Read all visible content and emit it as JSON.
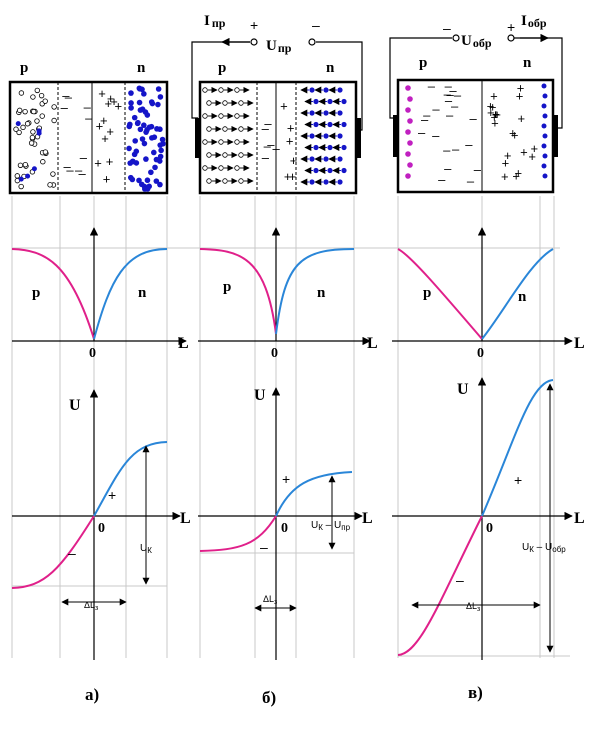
{
  "colors": {
    "p_curve": "#e0208a",
    "n_curve": "#2a86d8",
    "electron": "#1515c8",
    "hole_fill": "#ffffff",
    "ion_p_side": "#c020c0",
    "grid": "#c8c8c8"
  },
  "panels": [
    {
      "caption": "а)",
      "region_p": "p",
      "region_n": "n",
      "dens_p": "p",
      "dens_n": "n",
      "axis_zero": "0",
      "axis_L": "L",
      "axis_U": "U",
      "plus_sign": "+",
      "minus_sign": "–",
      "width_label": "ΔL",
      "width_sub": "з",
      "voltage_label": "U",
      "voltage_sub": "К",
      "voltage_rest": ""
    },
    {
      "caption": "б)",
      "region_p": "p",
      "region_n": "n",
      "dens_p": "p",
      "dens_n": "n",
      "axis_zero": "0",
      "axis_L": "L",
      "axis_U": "U",
      "plus_sign": "+",
      "minus_sign": "–",
      "width_label": "ΔL",
      "width_sub": "з",
      "voltage_label": "U",
      "voltage_sub": "К",
      "voltage_rest": " – U",
      "voltage_rest_sub": "пр",
      "current_label": "I",
      "current_sub": "пр",
      "source_label": "U",
      "source_sub": "пр",
      "source_plus": "+",
      "source_minus": "–"
    },
    {
      "caption": "в)",
      "region_p": "p",
      "region_n": "n",
      "dens_p": "p",
      "dens_n": "n",
      "axis_zero": "0",
      "axis_L": "L",
      "axis_U": "U",
      "plus_sign": "+",
      "minus_sign": "–",
      "width_label": "ΔL",
      "width_sub": "з",
      "voltage_label": "U",
      "voltage_sub": "К",
      "voltage_rest": " – U",
      "voltage_rest_sub": "обр",
      "current_label": "I",
      "current_sub": "обр",
      "source_label": "U",
      "source_sub": "обр",
      "source_plus": "+",
      "source_minus": "–"
    }
  ]
}
